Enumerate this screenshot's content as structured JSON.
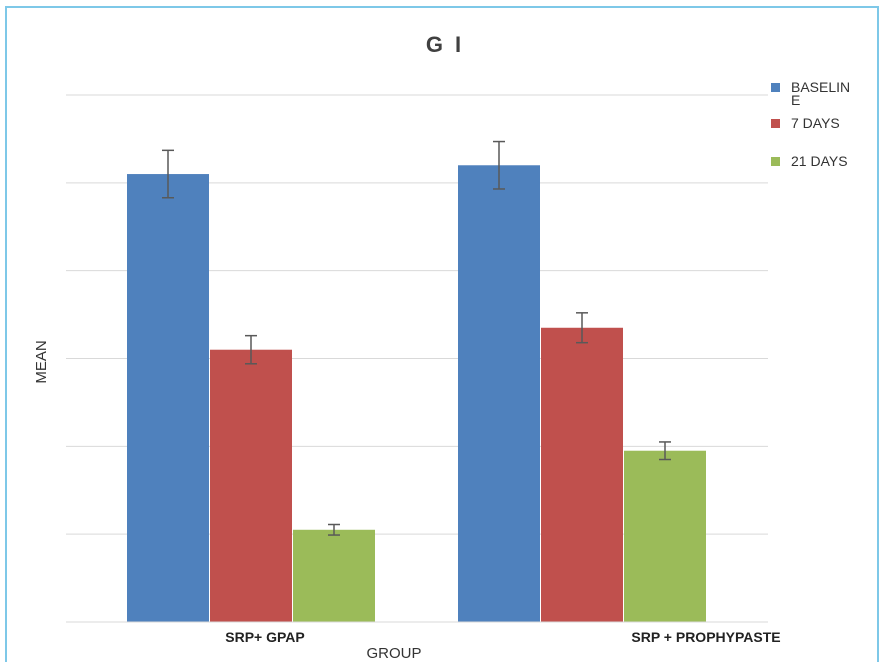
{
  "chart_data": {
    "type": "bar",
    "title": "G I",
    "xlabel": "GROUP",
    "ylabel": "MEAN",
    "categories": [
      "SRP+ GPAP",
      "SRP + PROPHYPASTE"
    ],
    "ylim": [
      0,
      6
    ],
    "grid": true,
    "legend_position": "right",
    "series": [
      {
        "name": "BASELINE",
        "legend_label": [
          "BASELIN",
          "E"
        ],
        "color": "#4f81bd",
        "values": [
          5.1,
          5.2
        ],
        "errors": [
          0.27,
          0.27
        ]
      },
      {
        "name": "7 DAYS",
        "legend_label": [
          "7 DAYS"
        ],
        "color": "#c0504d",
        "values": [
          3.1,
          3.35
        ],
        "errors": [
          0.16,
          0.17
        ]
      },
      {
        "name": "21 DAYS",
        "legend_label": [
          "21 DAYS"
        ],
        "color": "#9bbb59",
        "values": [
          1.05,
          1.95
        ],
        "errors": [
          0.06,
          0.1
        ]
      }
    ]
  }
}
